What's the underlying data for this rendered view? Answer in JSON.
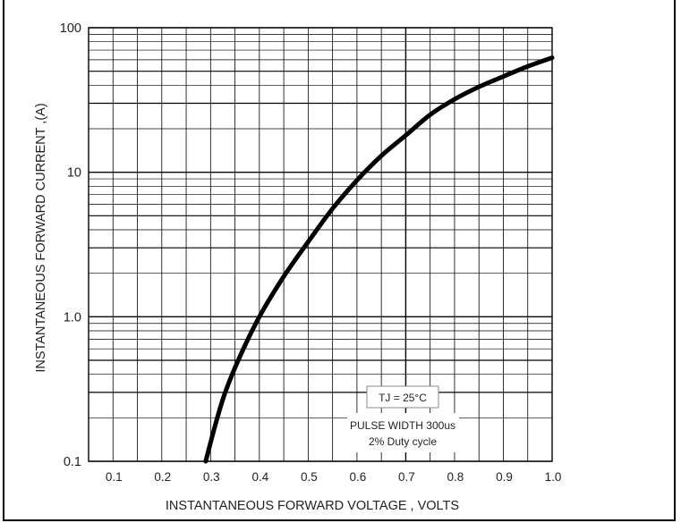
{
  "chart_data": {
    "type": "line",
    "title": "",
    "xlabel": "INSTANTANEOUS FORWARD VOLTAGE , VOLTS",
    "ylabel": "INSTANTANEOUS  FORWARD CURRENT ,(A)",
    "xlim": [
      0.05,
      1.0
    ],
    "ylim": [
      0.1,
      100
    ],
    "yscale": "log",
    "grid": true,
    "x_ticks": [
      "0.1",
      "0.2",
      "0.3",
      "0.4",
      "0.5",
      "0.6",
      "0.7",
      "0.8",
      "0.9",
      "1.0"
    ],
    "y_ticks": [
      "0.1",
      "1.0",
      "10",
      "100"
    ],
    "annotations": [
      "TJ = 25°C",
      "PULSE WIDTH 300us",
      "2% Duty cycle"
    ],
    "series": [
      {
        "x": [
          0.29,
          0.31,
          0.33,
          0.36,
          0.4,
          0.45,
          0.5,
          0.55,
          0.6,
          0.65,
          0.7,
          0.75,
          0.8,
          0.85,
          0.9,
          0.95,
          1.0
        ],
        "y": [
          0.1,
          0.18,
          0.3,
          0.53,
          1.0,
          1.9,
          3.3,
          5.6,
          8.8,
          13,
          18,
          25,
          32,
          39,
          46,
          54,
          62
        ]
      }
    ],
    "colors": {
      "curve": "#000000",
      "grid": "#000000"
    }
  }
}
